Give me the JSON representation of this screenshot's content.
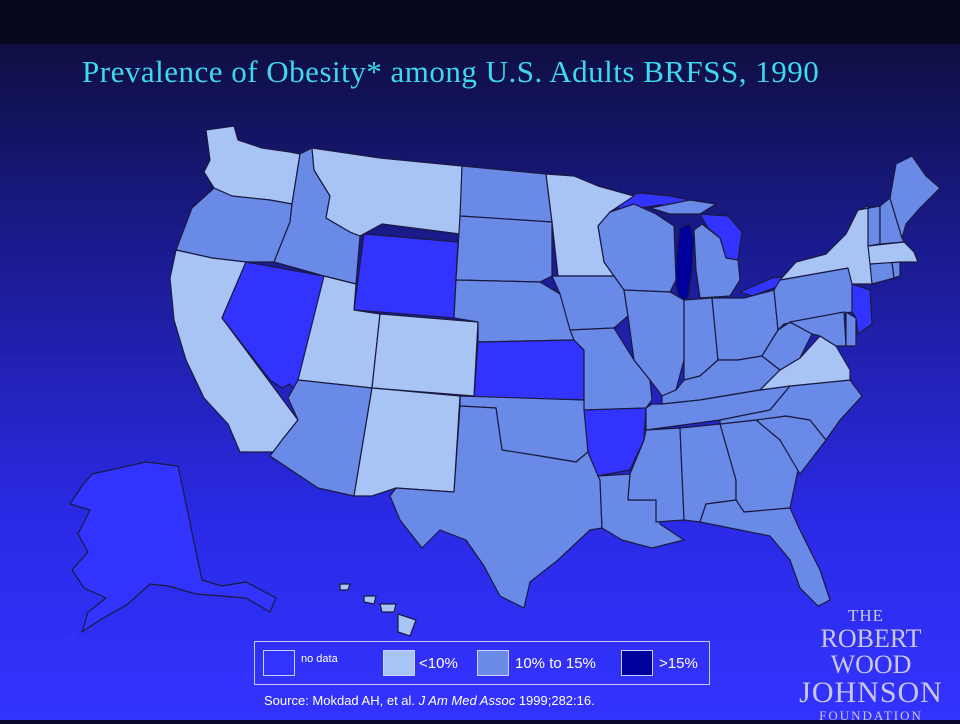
{
  "title": "Prevalence of Obesity* among U.S. Adults BRFSS, 1990",
  "legend": {
    "items": [
      {
        "label": "no data",
        "color": "#3333ff"
      },
      {
        "label": "<10%",
        "color": "#a8c4f5"
      },
      {
        "label": "10% to 15%",
        "color": "#6a8ae8"
      },
      {
        "label": ">15%",
        "color": "#00009c"
      }
    ]
  },
  "source": {
    "prefix": "Source: Mokdad AH, et al. ",
    "journal": "J Am Med Assoc",
    "suffix": " 1999;282:16."
  },
  "logo": {
    "line1": "THE",
    "line2": "ROBERT WOOD",
    "line3": "JOHNSON",
    "line4": "FOUNDATION"
  },
  "colors": {
    "no_data": "#3333ff",
    "under_10": "#a8c4f5",
    "10_to_15": "#6a8ae8",
    "over_15": "#00009c",
    "title": "#3fd8ee"
  },
  "states": {
    "WA": "under_10",
    "OR": "10_to_15",
    "CA": "under_10",
    "NV": "no_data",
    "ID": "10_to_15",
    "MT": "under_10",
    "WY": "no_data",
    "UT": "under_10",
    "CO": "under_10",
    "AZ": "10_to_15",
    "NM": "under_10",
    "ND": "10_to_15",
    "SD": "10_to_15",
    "NE": "10_to_15",
    "KS": "no_data",
    "OK": "10_to_15",
    "TX": "10_to_15",
    "MN": "under_10",
    "IA": "10_to_15",
    "MO": "10_to_15",
    "AR": "no_data",
    "LA": "10_to_15",
    "WI": "10_to_15",
    "IL": "10_to_15",
    "MI": "10_to_15",
    "IN": "10_to_15",
    "OH": "10_to_15",
    "KY": "10_to_15",
    "TN": "10_to_15",
    "MS": "10_to_15",
    "AL": "10_to_15",
    "GA": "10_to_15",
    "FL": "10_to_15",
    "SC": "10_to_15",
    "NC": "10_to_15",
    "VA": "under_10",
    "WV": "10_to_15",
    "PA": "10_to_15",
    "NY": "under_10",
    "VT": "10_to_15",
    "NH": "10_to_15",
    "ME": "10_to_15",
    "MA": "under_10",
    "RI": "10_to_15",
    "CT": "10_to_15",
    "NJ": "no_data",
    "DE": "10_to_15",
    "MD": "10_to_15",
    "AK": "no_data",
    "HI": "under_10"
  }
}
